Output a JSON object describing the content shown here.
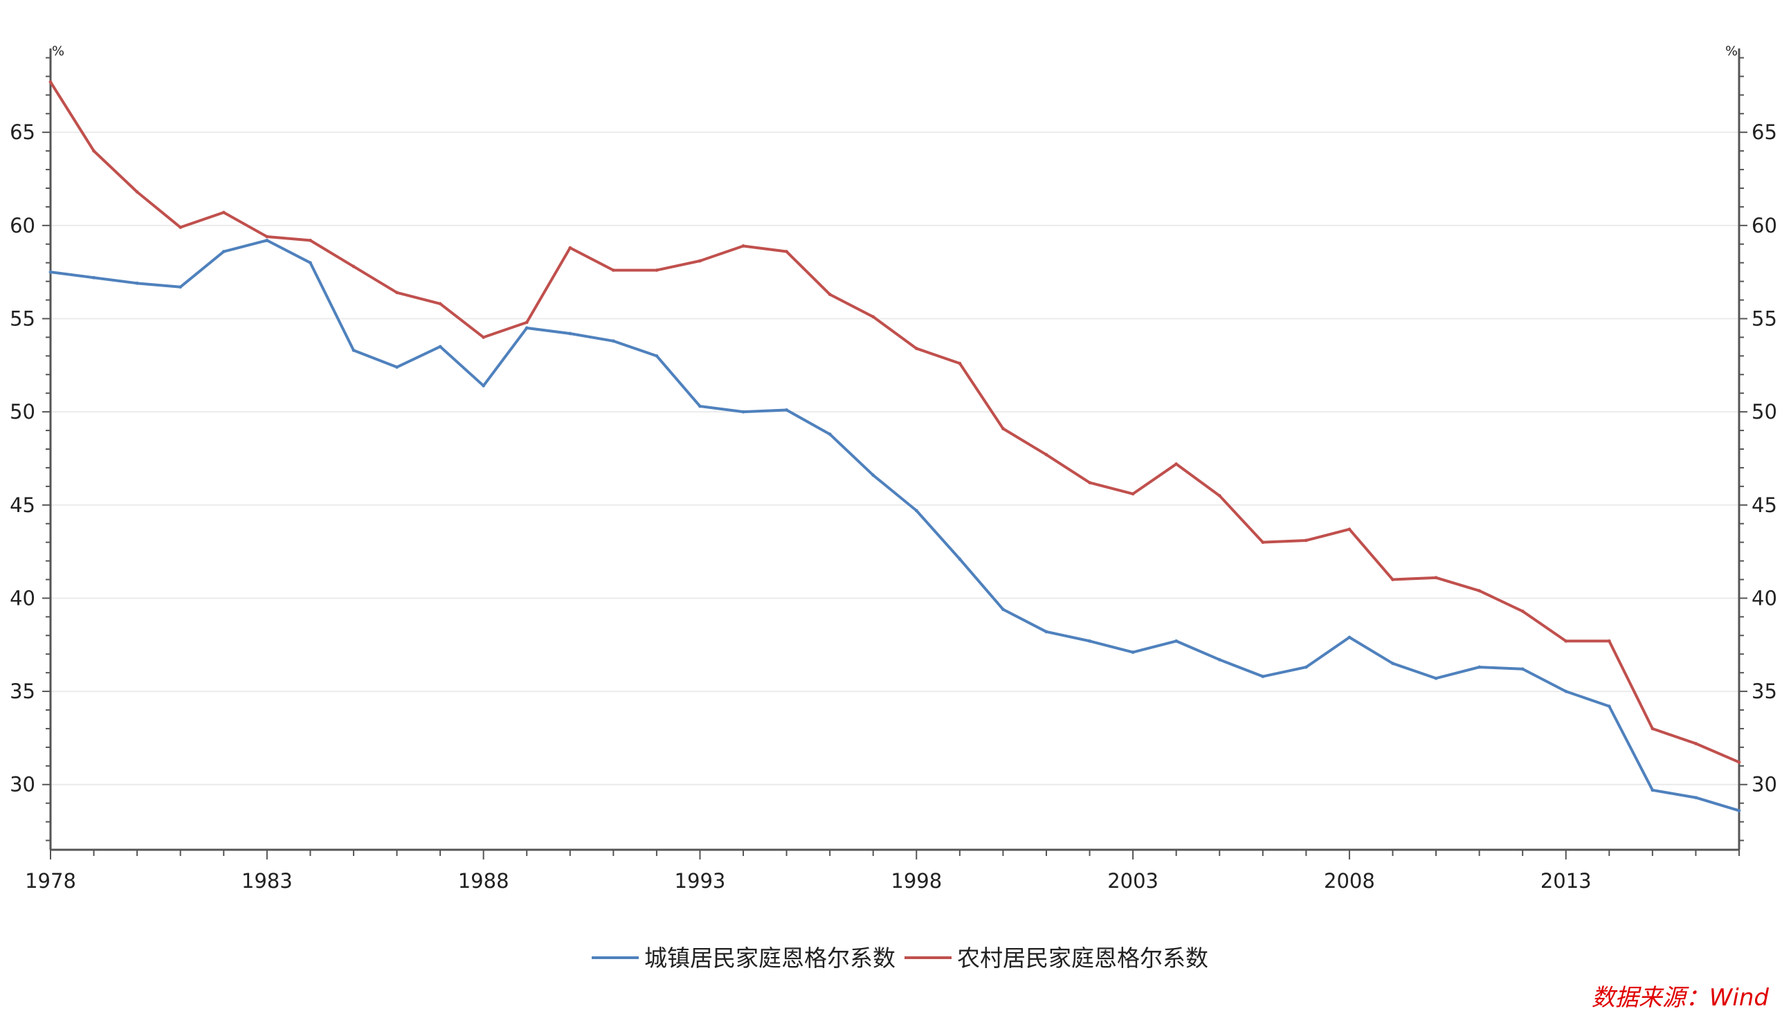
{
  "chart_data": {
    "type": "line",
    "x": [
      1978,
      1979,
      1980,
      1981,
      1982,
      1983,
      1984,
      1985,
      1986,
      1987,
      1988,
      1989,
      1990,
      1991,
      1992,
      1993,
      1994,
      1995,
      1996,
      1997,
      1998,
      1999,
      2000,
      2001,
      2002,
      2003,
      2004,
      2005,
      2006,
      2007,
      2008,
      2009,
      2010,
      2011,
      2012,
      2013,
      2014,
      2015,
      2016,
      2017
    ],
    "series": [
      {
        "name": "城镇居民家庭恩格尔系数",
        "color": "#4f81bd",
        "values": [
          57.5,
          57.2,
          56.9,
          56.7,
          58.6,
          59.2,
          58.0,
          53.3,
          52.4,
          53.5,
          51.4,
          54.5,
          54.2,
          53.8,
          53.0,
          50.3,
          50.0,
          50.1,
          48.8,
          46.6,
          44.7,
          42.1,
          39.4,
          38.2,
          37.7,
          37.1,
          37.7,
          36.7,
          35.8,
          36.3,
          37.9,
          36.5,
          35.7,
          36.3,
          36.2,
          35.0,
          34.2,
          29.7,
          29.3,
          28.6
        ]
      },
      {
        "name": "农村居民家庭恩格尔系数",
        "color": "#c0504d",
        "values": [
          67.7,
          64.0,
          61.8,
          59.9,
          60.7,
          59.4,
          59.2,
          57.8,
          56.4,
          55.8,
          54.0,
          54.8,
          58.8,
          57.6,
          57.6,
          58.1,
          58.9,
          58.6,
          56.3,
          55.1,
          53.4,
          52.6,
          49.1,
          47.7,
          46.2,
          45.6,
          47.2,
          45.5,
          43.0,
          43.1,
          43.7,
          41.0,
          41.1,
          40.4,
          39.3,
          37.7,
          37.7,
          33.0,
          32.2,
          31.2
        ]
      }
    ],
    "xticks": [
      "1978",
      "1983",
      "1988",
      "1993",
      "1998",
      "2003",
      "2008",
      "2013"
    ],
    "yticks": [
      "30",
      "35",
      "40",
      "45",
      "50",
      "55",
      "60",
      "65"
    ],
    "xlim": [
      1978,
      2017
    ],
    "ylim": [
      26.5,
      69.5
    ],
    "y_unit_left": "%",
    "y_unit_right": "%",
    "grid": "horizontal",
    "legend_position": "bottom",
    "source": "数据来源：Wind",
    "source_color": "#e00000"
  }
}
